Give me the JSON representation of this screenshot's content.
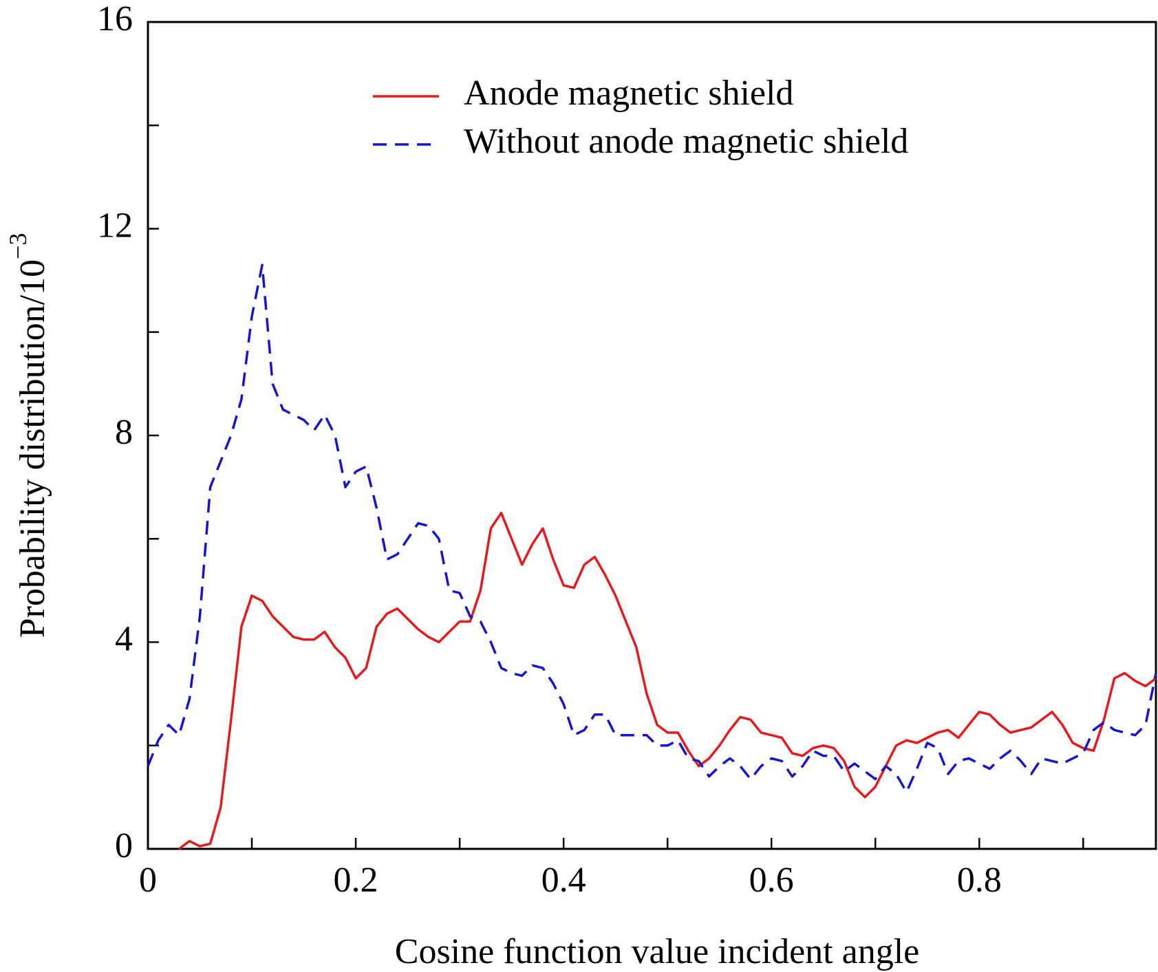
{
  "chart_data": {
    "type": "line",
    "xlabel": "Cosine function value incident angle",
    "ylabel": "Probability distribution/10",
    "ylabel_exponent": "−3",
    "xlim": [
      0,
      0.97
    ],
    "ylim": [
      0,
      16
    ],
    "xticks": [
      0,
      0.2,
      0.4,
      0.6,
      0.8
    ],
    "xminorticks": [
      0.1,
      0.3,
      0.5,
      0.7,
      0.9
    ],
    "yticks": [
      0,
      4,
      8,
      12,
      16
    ],
    "yminorticks": [
      2,
      6,
      10,
      14
    ],
    "legend": "top-right",
    "x": [
      0,
      0.01,
      0.02,
      0.03,
      0.04,
      0.05,
      0.06,
      0.07,
      0.08,
      0.09,
      0.1,
      0.11,
      0.12,
      0.13,
      0.14,
      0.15,
      0.16,
      0.17,
      0.18,
      0.19,
      0.2,
      0.21,
      0.22,
      0.23,
      0.24,
      0.25,
      0.26,
      0.27,
      0.28,
      0.29,
      0.3,
      0.31,
      0.32,
      0.33,
      0.34,
      0.35,
      0.36,
      0.37,
      0.38,
      0.39,
      0.4,
      0.41,
      0.42,
      0.43,
      0.44,
      0.45,
      0.46,
      0.47,
      0.48,
      0.49,
      0.5,
      0.51,
      0.52,
      0.53,
      0.54,
      0.55,
      0.56,
      0.57,
      0.58,
      0.59,
      0.6,
      0.61,
      0.62,
      0.63,
      0.64,
      0.65,
      0.66,
      0.67,
      0.68,
      0.69,
      0.7,
      0.71,
      0.72,
      0.73,
      0.74,
      0.75,
      0.76,
      0.77,
      0.78,
      0.79,
      0.8,
      0.81,
      0.82,
      0.83,
      0.84,
      0.85,
      0.86,
      0.87,
      0.88,
      0.89,
      0.9,
      0.91,
      0.92,
      0.93,
      0.94,
      0.95,
      0.96,
      0.97
    ],
    "series": [
      {
        "name": "Anode magnetic shield",
        "color": "#e41a1c",
        "dash": false,
        "values": [
          null,
          null,
          null,
          0,
          0.15,
          0.05,
          0.1,
          0.8,
          2.5,
          4.3,
          4.9,
          4.8,
          4.5,
          4.3,
          4.1,
          4.05,
          4.05,
          4.2,
          3.9,
          3.7,
          3.3,
          3.5,
          4.3,
          4.55,
          4.65,
          4.45,
          4.25,
          4.1,
          4.0,
          4.2,
          4.4,
          4.4,
          5.0,
          6.2,
          6.5,
          6.0,
          5.5,
          5.9,
          6.2,
          5.6,
          5.1,
          5.05,
          5.5,
          5.65,
          5.3,
          4.9,
          4.4,
          3.9,
          3.0,
          2.4,
          2.25,
          2.25,
          1.9,
          1.6,
          1.75,
          2.0,
          2.3,
          2.55,
          2.5,
          2.25,
          2.2,
          2.15,
          1.85,
          1.8,
          1.95,
          2.0,
          1.95,
          1.7,
          1.2,
          1.0,
          1.2,
          1.6,
          2.0,
          2.1,
          2.05,
          2.15,
          2.25,
          2.3,
          2.15,
          2.4,
          2.65,
          2.6,
          2.4,
          2.25,
          2.3,
          2.35,
          2.5,
          2.65,
          2.4,
          2.05,
          1.95,
          1.9,
          2.5,
          3.3,
          3.4,
          3.25,
          3.15,
          3.3
        ]
      },
      {
        "name": "Without anode magnetic shield",
        "color": "#1515d0",
        "dash": true,
        "values": [
          1.6,
          2.1,
          2.4,
          2.2,
          2.9,
          4.5,
          7.0,
          7.5,
          8.0,
          8.7,
          10.3,
          11.3,
          9.0,
          8.5,
          8.4,
          8.3,
          8.1,
          8.4,
          8.0,
          7.0,
          7.3,
          7.4,
          6.6,
          5.6,
          5.7,
          6.0,
          6.3,
          6.25,
          6.0,
          5.0,
          4.95,
          4.5,
          4.4,
          4.0,
          3.5,
          3.4,
          3.35,
          3.55,
          3.5,
          3.2,
          2.8,
          2.2,
          2.3,
          2.6,
          2.6,
          2.2,
          2.2,
          2.2,
          2.2,
          2.0,
          2.0,
          2.1,
          1.75,
          1.7,
          1.4,
          1.6,
          1.75,
          1.6,
          1.35,
          1.6,
          1.75,
          1.7,
          1.4,
          1.6,
          1.9,
          1.8,
          1.8,
          1.5,
          1.65,
          1.5,
          1.35,
          1.6,
          1.45,
          1.1,
          1.55,
          2.05,
          1.95,
          1.45,
          1.7,
          1.75,
          1.65,
          1.55,
          1.75,
          1.9,
          1.7,
          1.45,
          1.75,
          1.7,
          1.65,
          1.75,
          1.85,
          2.3,
          2.45,
          2.3,
          2.25,
          2.2,
          2.4,
          3.4
        ]
      }
    ]
  }
}
